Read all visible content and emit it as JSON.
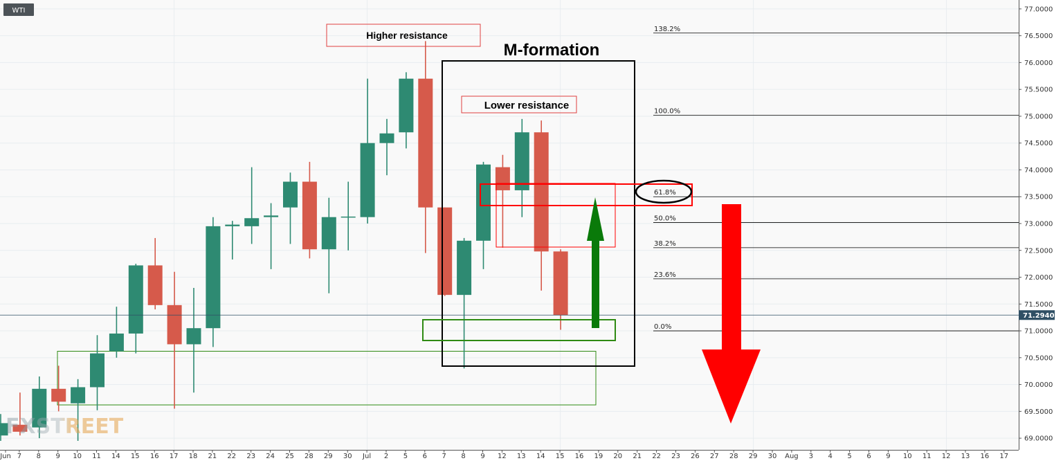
{
  "chart_data": {
    "type": "candlestick",
    "symbol": "WTI",
    "current_price_label": "71.2940",
    "current_price": 71.294,
    "ylim": [
      68.95,
      77.05
    ],
    "y_ticks": [
      "69.0000",
      "69.5000",
      "70.0000",
      "70.5000",
      "71.0000",
      "71.5000",
      "72.0000",
      "72.5000",
      "73.0000",
      "73.5000",
      "74.0000",
      "74.5000",
      "75.0000",
      "75.5000",
      "76.0000",
      "76.5000",
      "77.0000"
    ],
    "x_labels": [
      "Jun",
      "7",
      "8",
      "9",
      "10",
      "11",
      "14",
      "15",
      "16",
      "17",
      "18",
      "21",
      "22",
      "23",
      "24",
      "25",
      "28",
      "29",
      "30",
      "Jul",
      "2",
      "5",
      "6",
      "7",
      "8",
      "9",
      "12",
      "13",
      "14",
      "15",
      "16",
      "19",
      "20",
      "21",
      "22",
      "23",
      "26",
      "27",
      "28",
      "29",
      "30",
      "Aug",
      "3",
      "4",
      "5",
      "6",
      "9",
      "10",
      "11",
      "12",
      "13",
      "16",
      "17"
    ],
    "candles": [
      {
        "o": 69.05,
        "h": 69.45,
        "l": 68.95,
        "c": 69.28
      },
      {
        "o": 69.25,
        "h": 69.85,
        "l": 69.05,
        "c": 69.12
      },
      {
        "o": 69.2,
        "h": 70.15,
        "l": 69.0,
        "c": 69.92
      },
      {
        "o": 69.92,
        "h": 70.35,
        "l": 69.5,
        "c": 69.68
      },
      {
        "o": 69.65,
        "h": 70.1,
        "l": 68.95,
        "c": 69.95
      },
      {
        "o": 69.95,
        "h": 70.92,
        "l": 69.52,
        "c": 70.58
      },
      {
        "o": 70.62,
        "h": 71.45,
        "l": 70.5,
        "c": 70.95
      },
      {
        "o": 70.95,
        "h": 72.25,
        "l": 70.58,
        "c": 72.22
      },
      {
        "o": 72.22,
        "h": 72.73,
        "l": 71.4,
        "c": 71.48
      },
      {
        "o": 71.48,
        "h": 72.1,
        "l": 69.55,
        "c": 70.75
      },
      {
        "o": 70.75,
        "h": 71.8,
        "l": 69.85,
        "c": 71.05
      },
      {
        "o": 71.05,
        "h": 73.12,
        "l": 70.7,
        "c": 72.95
      },
      {
        "o": 72.95,
        "h": 73.05,
        "l": 72.33,
        "c": 72.98
      },
      {
        "o": 72.95,
        "h": 74.05,
        "l": 72.62,
        "c": 73.1
      },
      {
        "o": 73.12,
        "h": 73.38,
        "l": 72.15,
        "c": 73.15
      },
      {
        "o": 73.3,
        "h": 73.95,
        "l": 72.62,
        "c": 73.78
      },
      {
        "o": 73.78,
        "h": 74.15,
        "l": 72.35,
        "c": 72.52
      },
      {
        "o": 72.52,
        "h": 73.48,
        "l": 71.7,
        "c": 73.12
      },
      {
        "o": 73.12,
        "h": 73.78,
        "l": 72.5,
        "c": 73.13
      },
      {
        "o": 73.12,
        "h": 75.7,
        "l": 73.0,
        "c": 74.5
      },
      {
        "o": 74.5,
        "h": 74.95,
        "l": 73.9,
        "c": 74.68
      },
      {
        "o": 74.7,
        "h": 75.82,
        "l": 74.4,
        "c": 75.7
      },
      {
        "o": 75.7,
        "h": 76.4,
        "l": 72.45,
        "c": 73.3
      },
      {
        "o": 73.3,
        "h": 73.3,
        "l": 71.65,
        "c": 71.67
      },
      {
        "o": 71.67,
        "h": 72.73,
        "l": 70.3,
        "c": 72.68
      },
      {
        "o": 72.68,
        "h": 74.15,
        "l": 72.15,
        "c": 74.1
      },
      {
        "o": 74.05,
        "h": 74.28,
        "l": 72.55,
        "c": 73.62
      },
      {
        "o": 73.62,
        "h": 74.95,
        "l": 73.12,
        "c": 74.7
      },
      {
        "o": 74.7,
        "h": 74.92,
        "l": 71.75,
        "c": 72.48
      },
      {
        "o": 72.48,
        "h": 72.52,
        "l": 71.02,
        "c": 71.29
      }
    ],
    "fibonacci": [
      {
        "label": "138.2%",
        "value": 76.55
      },
      {
        "label": "100.0%",
        "value": 75.02
      },
      {
        "label": "61.8%",
        "value": 73.5
      },
      {
        "label": "50.0%",
        "value": 73.02
      },
      {
        "label": "38.2%",
        "value": 72.55
      },
      {
        "label": "23.6%",
        "value": 71.97
      },
      {
        "label": "0.0%",
        "value": 71.0
      }
    ],
    "annotations": {
      "higher_resistance": "Higher resistance",
      "lower_resistance": "Lower resistance",
      "m_formation": "M-formation",
      "watermark": "FXSTREET"
    },
    "colors": {
      "bull": "#2e8a72",
      "bear": "#d65a4b",
      "grid": "#e8edf0",
      "fib_line": "#000000",
      "price_tag": "#2f4f64",
      "up_arrow": "#0a7a0a",
      "down_arrow": "#ff0000",
      "support_box": "#2e8a12",
      "resistance_box": "#ff0000"
    }
  }
}
